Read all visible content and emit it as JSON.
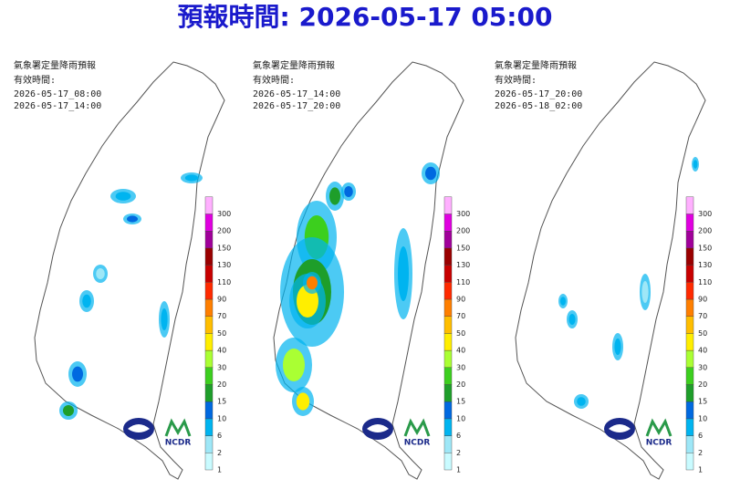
{
  "title": "預報時間: 2026-05-17 05:00",
  "panels": [
    {
      "heading": "氣象署定量降雨預報",
      "valid_label": "有效時間:",
      "start": "2026-05-17_08:00",
      "end": "2026-05-17_14:00"
    },
    {
      "heading": "氣象署定量降雨預報",
      "valid_label": "有效時間:",
      "start": "2026-05-17_14:00",
      "end": "2026-05-17_20:00"
    },
    {
      "heading": "氣象署定量降雨預報",
      "valid_label": "有效時間:",
      "start": "2026-05-17_20:00",
      "end": "2026-05-18_02:00"
    }
  ],
  "legend": {
    "levels": [
      1,
      2,
      6,
      10,
      15,
      20,
      30,
      40,
      50,
      70,
      90,
      110,
      130,
      150,
      200,
      300
    ],
    "colors": [
      "#c9fbff",
      "#9ee7f7",
      "#00b4f0",
      "#0069e0",
      "#1e9e2a",
      "#3ccf1e",
      "#aaff33",
      "#ffee00",
      "#ffbe00",
      "#ff7f00",
      "#ff2a00",
      "#c80000",
      "#9a0000",
      "#a0009a",
      "#e000e0",
      "#ffb0ff"
    ]
  },
  "logo_text": "NCDR"
}
